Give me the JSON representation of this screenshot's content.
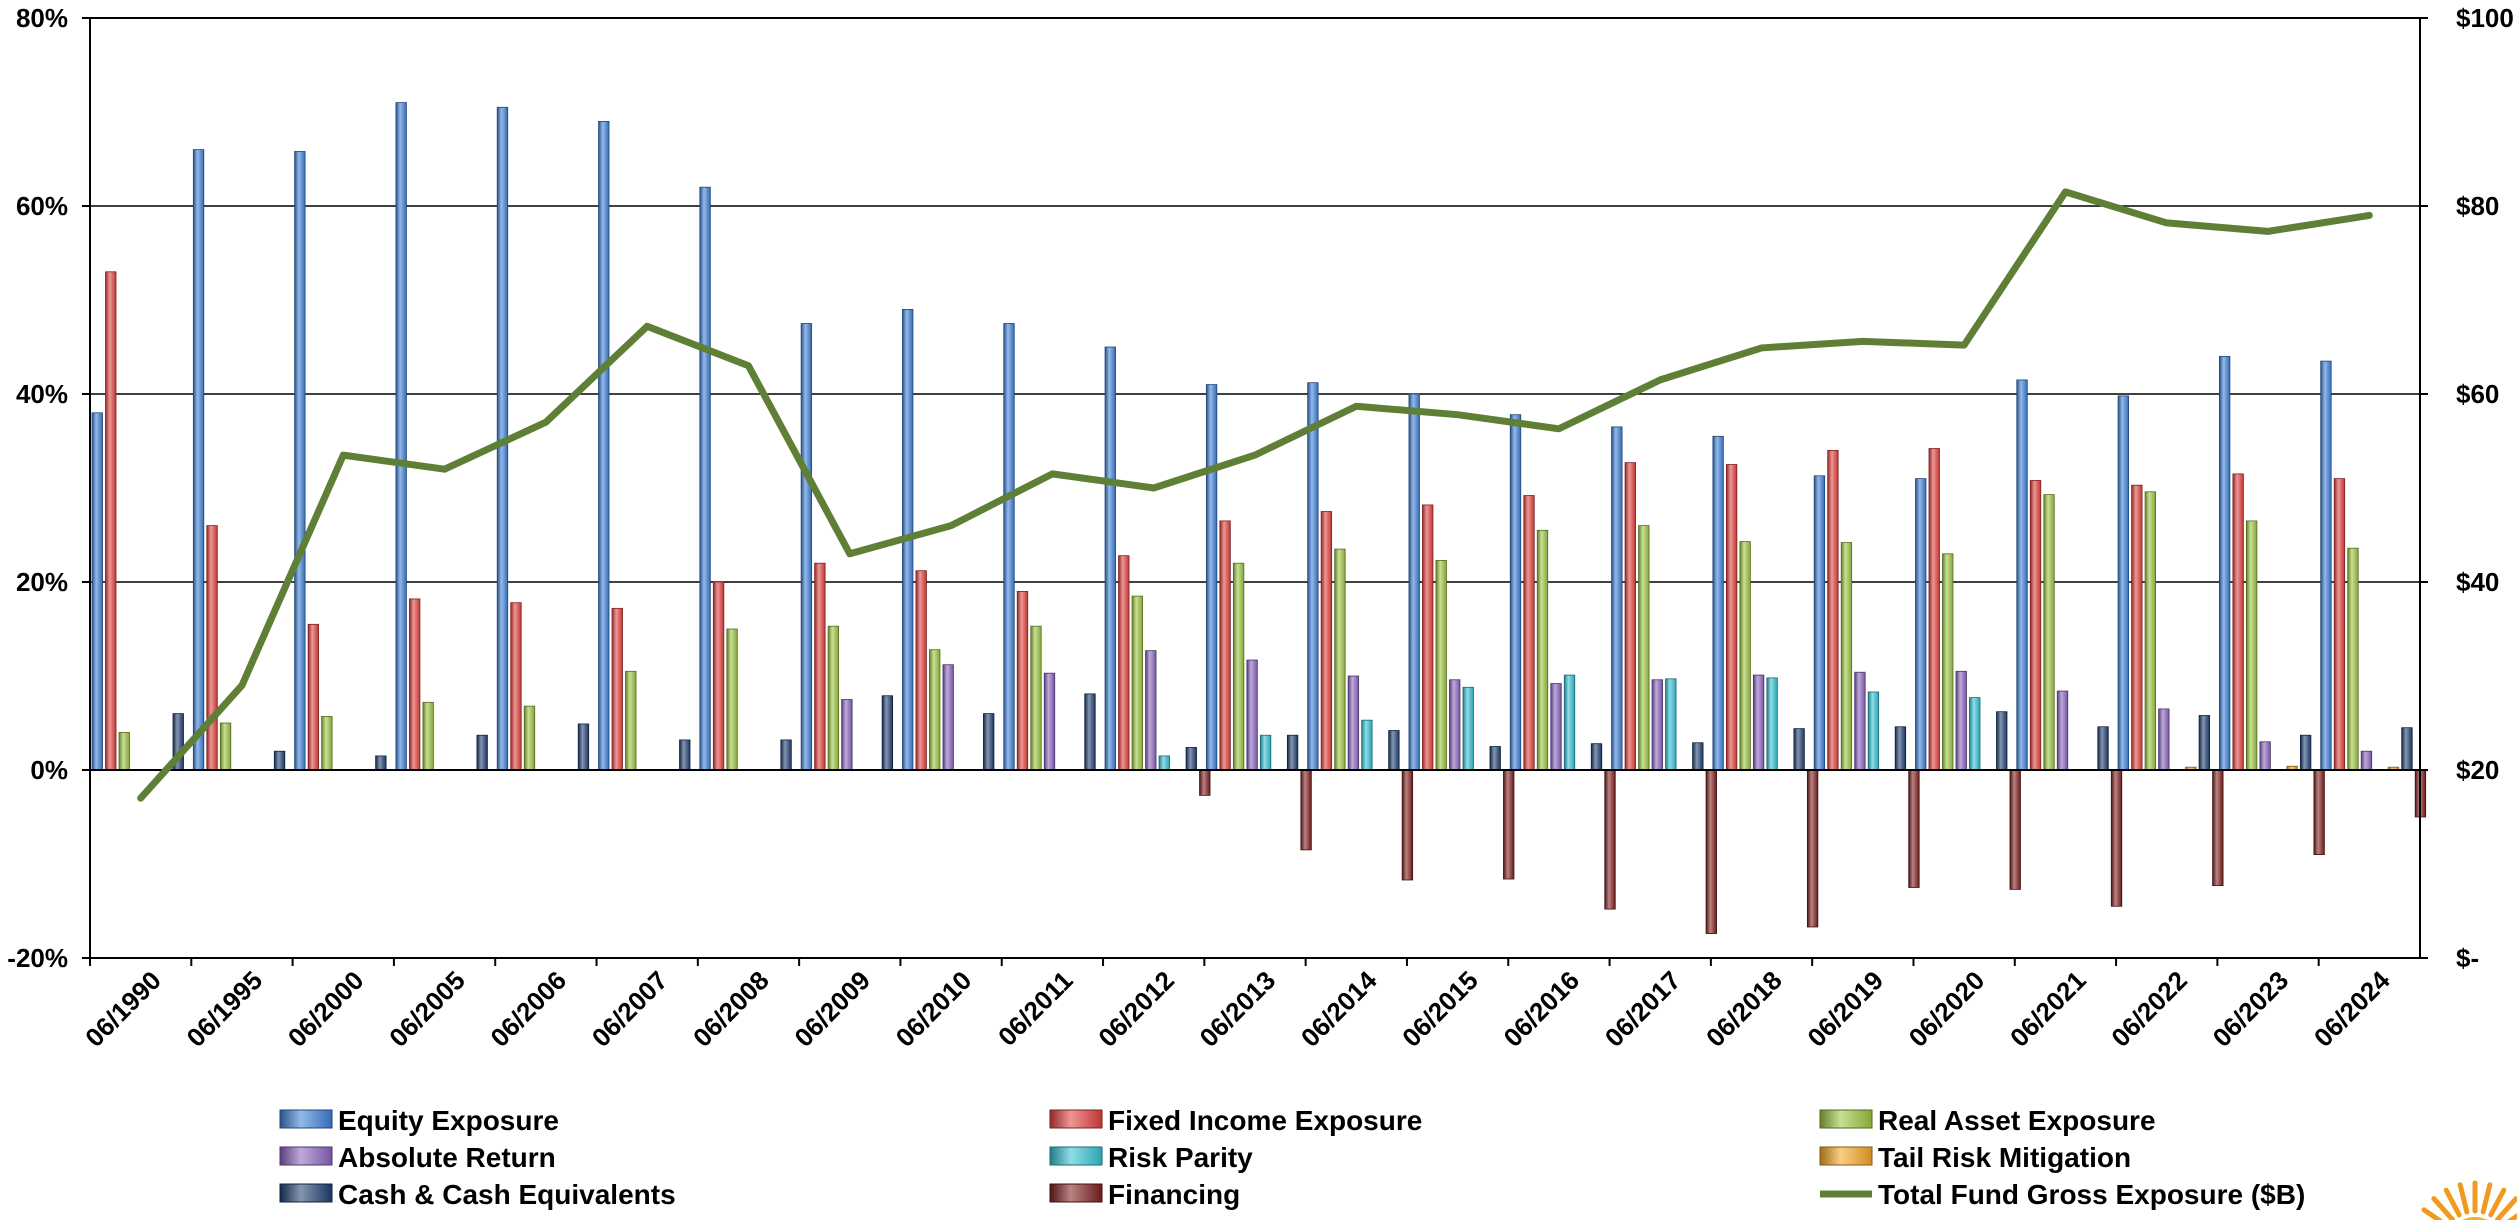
{
  "chart_data": {
    "type": "bar",
    "categories": [
      "06/1990",
      "06/1995",
      "06/2000",
      "06/2005",
      "06/2006",
      "06/2007",
      "06/2008",
      "06/2009",
      "06/2010",
      "06/2011",
      "06/2012",
      "06/2013",
      "06/2014",
      "06/2015",
      "06/2016",
      "06/2017",
      "06/2018",
      "06/2019",
      "06/2020",
      "06/2021",
      "06/2022",
      "06/2023",
      "06/2024"
    ],
    "y_axis_left": {
      "ylim": [
        -20,
        80
      ],
      "ticks": [
        -20,
        0,
        20,
        40,
        60,
        80
      ],
      "tick_labels": [
        "-20%",
        "0%",
        "20%",
        "40%",
        "60%",
        "80%"
      ]
    },
    "y_axis_right": {
      "ylim": [
        0,
        100
      ],
      "ticks": [
        0,
        20,
        40,
        60,
        80,
        100
      ],
      "tick_labels": [
        "$-",
        "$20",
        "$40",
        "$60",
        "$80",
        "$100"
      ]
    },
    "grid": true,
    "legend_position": "bottom",
    "series": [
      {
        "name": "Equity Exposure",
        "type": "bar",
        "axis": "left",
        "color": "#3d7fd6",
        "values": [
          38,
          66,
          65.8,
          71,
          70.5,
          69,
          62,
          47.5,
          49,
          47.5,
          45,
          41,
          41.2,
          40,
          37.8,
          36.5,
          35.5,
          31.3,
          31,
          41.5,
          39.8,
          44,
          43.5
        ]
      },
      {
        "name": "Fixed Income Exposure",
        "type": "bar",
        "axis": "left",
        "color": "#e0403c",
        "values": [
          53,
          26,
          15.5,
          18.2,
          17.8,
          17.2,
          20,
          22,
          21.2,
          19,
          22.8,
          26.5,
          27.5,
          28.2,
          29.2,
          32.7,
          32.5,
          34,
          34.2,
          30.8,
          30.3,
          31.5,
          31
        ]
      },
      {
        "name": "Real Asset Exposure",
        "type": "bar",
        "axis": "left",
        "color": "#9bc43e",
        "values": [
          4,
          5,
          5.7,
          7.2,
          6.8,
          10.5,
          15,
          15.3,
          12.8,
          15.3,
          18.5,
          22,
          23.5,
          22.3,
          25.5,
          26,
          24.3,
          24.2,
          23,
          29.3,
          29.6,
          26.5,
          23.6
        ]
      },
      {
        "name": "Absolute Return",
        "type": "bar",
        "axis": "left",
        "color": "#8b63be",
        "values": [
          0,
          0,
          0,
          0,
          0,
          0,
          0,
          7.5,
          11.2,
          10.3,
          12.7,
          11.7,
          10,
          9.6,
          9.2,
          9.6,
          10.1,
          10.4,
          10.5,
          8.4,
          6.5,
          3,
          2
        ]
      },
      {
        "name": "Risk Parity",
        "type": "bar",
        "axis": "left",
        "color": "#33c1d2",
        "values": [
          0,
          0,
          0,
          0,
          0,
          0,
          0,
          0,
          0,
          0,
          1.5,
          3.7,
          5.3,
          8.8,
          10.1,
          9.7,
          9.8,
          8.3,
          7.7,
          0,
          0,
          0,
          0
        ]
      },
      {
        "name": "Tail Risk Mitigation",
        "type": "bar",
        "axis": "left",
        "color": "#f5a623",
        "values": [
          0,
          0,
          0,
          0,
          0,
          0,
          0,
          0,
          0,
          0,
          0,
          0,
          0,
          0,
          0,
          0,
          0,
          0,
          0,
          0,
          0.3,
          0.4,
          0.3
        ]
      },
      {
        "name": "Cash & Cash Equivalents",
        "type": "bar",
        "axis": "left",
        "color": "#1f3f70",
        "values": [
          6,
          2,
          1.5,
          3.7,
          4.9,
          3.2,
          3.2,
          7.9,
          6,
          8.1,
          2.4,
          3.7,
          4.2,
          2.5,
          2.8,
          2.9,
          4.4,
          4.6,
          6.2,
          4.6,
          5.8,
          3.7,
          4.5
        ]
      },
      {
        "name": "Financing",
        "type": "bar",
        "axis": "left",
        "color": "#7d1e1e",
        "values": [
          0,
          0,
          0,
          0,
          0,
          0,
          0,
          0,
          0,
          0,
          -2.7,
          -8.5,
          -11.7,
          -11.6,
          -14.8,
          -17.4,
          -16.7,
          -12.5,
          -12.7,
          -14.5,
          -12.3,
          -9,
          -5
        ]
      },
      {
        "name": "Total Fund Gross Exposure ($B)",
        "type": "line",
        "axis": "right",
        "color": "#5e7f35",
        "values": [
          17,
          29,
          53.5,
          52,
          57,
          67.2,
          63,
          43,
          46,
          51.5,
          50,
          53.5,
          58.7,
          57.8,
          56.3,
          61.5,
          64.9,
          65.6,
          65.2,
          81.5,
          78.2,
          77.3,
          79
        ]
      }
    ]
  }
}
